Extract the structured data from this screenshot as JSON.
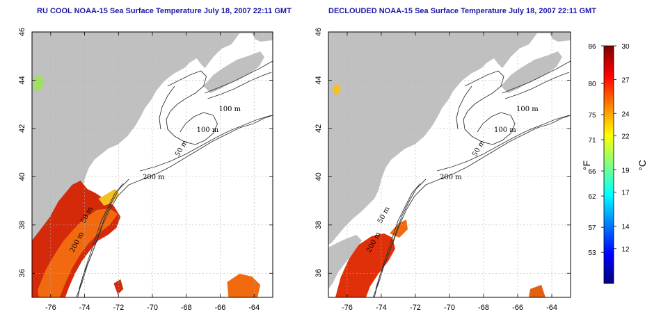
{
  "maps": [
    {
      "title": "RU COOL NOAA-15 Sea Surface Temperature July 18, 2007 22:11 GMT",
      "contour_labels": [
        "100 m",
        "100 m",
        "50 m",
        "200 m",
        "50 m",
        "200 m"
      ]
    },
    {
      "title": "DECLOUDED NOAA-15 Sea Surface Temperature July 18, 2007 22:11 GMT",
      "contour_labels": [
        "100 m",
        "100 m",
        "50 m",
        "200 m",
        "50 m",
        "200 m"
      ]
    }
  ],
  "lon_ticks": [
    "-76",
    "-74",
    "-72",
    "-70",
    "-68",
    "-66",
    "-64"
  ],
  "lat_ticks": [
    "36",
    "38",
    "40",
    "42",
    "44",
    "46"
  ],
  "lon_values": [
    -76,
    -74,
    -72,
    -70,
    -68,
    -66,
    -64
  ],
  "lat_values": [
    36,
    38,
    40,
    42,
    44,
    46
  ],
  "lon_range": [
    -77.1,
    -62.9
  ],
  "lat_range": [
    35,
    46
  ],
  "colorbar": {
    "fahrenheit_label": "°F",
    "celsius_label": "°C",
    "fahrenheit_ticks": [
      "86",
      "80",
      "75",
      "71",
      "66",
      "62",
      "57",
      "53"
    ],
    "celsius_ticks": [
      "30",
      "27",
      "24",
      "22",
      "19",
      "17",
      "14",
      "12"
    ],
    "fahrenheit_values": [
      86,
      80,
      75,
      71,
      66,
      62,
      57,
      53
    ],
    "celsius_values": [
      30,
      27,
      24,
      22,
      19,
      17,
      14,
      12
    ],
    "celsius_range": [
      8.9,
      30
    ],
    "colors": [
      "#00007f",
      "#0000ff",
      "#0080ff",
      "#00ffff",
      "#80ff80",
      "#ffff00",
      "#ff8000",
      "#ff0000",
      "#7f0000"
    ]
  },
  "colors": {
    "title": "#1a1aa6",
    "land": "#c0c0c0",
    "grid": "#b0b0b0",
    "hot": "#d42a0a",
    "warm": "#f26a10",
    "mild": "#f5c020"
  }
}
